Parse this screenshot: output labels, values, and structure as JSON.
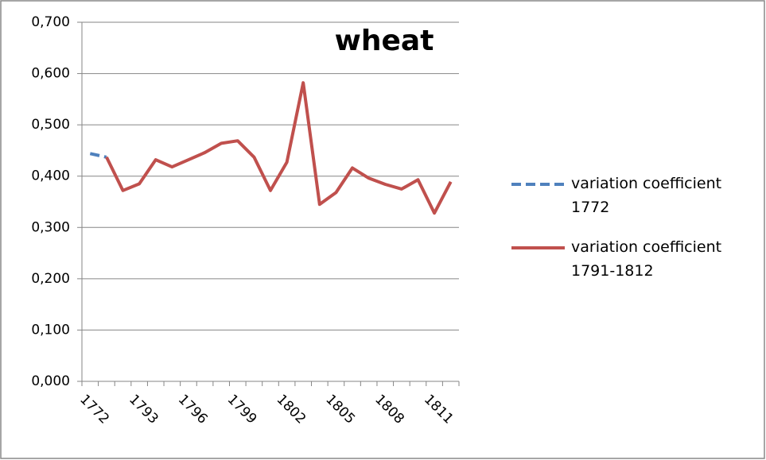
{
  "chart_data": {
    "type": "line",
    "title": "wheat",
    "categories": [
      "1772",
      null,
      null,
      "1793",
      null,
      null,
      "1796",
      null,
      null,
      "1799",
      null,
      null,
      "1802",
      null,
      null,
      "1805",
      null,
      null,
      "1808",
      null,
      null,
      "1811",
      null
    ],
    "series": [
      {
        "name": "variation coefficient 1772",
        "color": "#4f81bd",
        "dashed": true,
        "values": [
          0.444,
          0.437,
          null,
          null,
          null,
          null,
          null,
          null,
          null,
          null,
          null,
          null,
          null,
          null,
          null,
          null,
          null,
          null,
          null,
          null,
          null,
          null,
          null
        ]
      },
      {
        "name": "variation coefficient 1791-1812",
        "color": "#c0504d",
        "dashed": false,
        "values": [
          null,
          0.437,
          0.372,
          0.385,
          0.432,
          0.418,
          0.432,
          0.446,
          0.464,
          0.469,
          0.437,
          0.372,
          0.427,
          0.582,
          0.345,
          0.368,
          0.416,
          0.396,
          0.384,
          0.375,
          0.393,
          0.328,
          0.389
        ]
      }
    ],
    "ylim": [
      0,
      0.7
    ],
    "yticks": [
      {
        "value": 0,
        "label": "0,000"
      },
      {
        "value": 0.1,
        "label": "0,100"
      },
      {
        "value": 0.2,
        "label": "0,200"
      },
      {
        "value": 0.3,
        "label": "0,300"
      },
      {
        "value": 0.4,
        "label": "0,400"
      },
      {
        "value": 0.5,
        "label": "0,500"
      },
      {
        "value": 0.6,
        "label": "0,600"
      },
      {
        "value": 0.7,
        "label": "0,700"
      }
    ],
    "grid": true,
    "legend": "right"
  }
}
